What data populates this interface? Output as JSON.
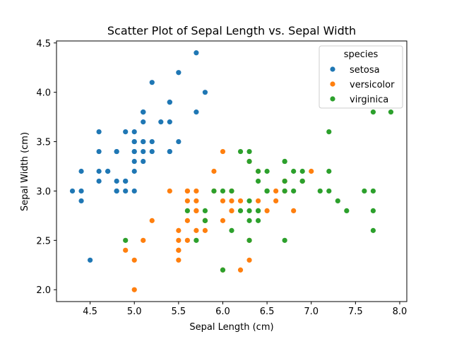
{
  "chart_data": {
    "type": "scatter",
    "title": "Scatter Plot of Sepal Length vs. Sepal Width",
    "xlabel": "Sepal Length (cm)",
    "ylabel": "Sepal Width (cm)",
    "xlim": [
      4.12,
      8.08
    ],
    "ylim": [
      1.88,
      4.52
    ],
    "xticks": [
      "4.5",
      "5.0",
      "5.5",
      "6.0",
      "6.5",
      "7.0",
      "7.5",
      "8.0"
    ],
    "yticks": [
      "2.0",
      "2.5",
      "3.0",
      "3.5",
      "4.0",
      "4.5"
    ],
    "grid": false,
    "legend": {
      "title": "species",
      "position": "top-right"
    },
    "series": [
      {
        "name": "setosa",
        "color": "#1f77b4",
        "points": [
          [
            5.1,
            3.5
          ],
          [
            4.9,
            3.0
          ],
          [
            4.7,
            3.2
          ],
          [
            4.6,
            3.1
          ],
          [
            5.0,
            3.6
          ],
          [
            5.4,
            3.9
          ],
          [
            4.6,
            3.4
          ],
          [
            5.0,
            3.4
          ],
          [
            4.4,
            2.9
          ],
          [
            4.9,
            3.1
          ],
          [
            5.4,
            3.7
          ],
          [
            4.8,
            3.4
          ],
          [
            4.8,
            3.0
          ],
          [
            4.3,
            3.0
          ],
          [
            5.8,
            4.0
          ],
          [
            5.7,
            4.4
          ],
          [
            5.4,
            3.9
          ],
          [
            5.1,
            3.5
          ],
          [
            5.7,
            3.8
          ],
          [
            5.1,
            3.8
          ],
          [
            5.4,
            3.4
          ],
          [
            5.1,
            3.7
          ],
          [
            4.6,
            3.6
          ],
          [
            5.1,
            3.3
          ],
          [
            4.8,
            3.4
          ],
          [
            5.0,
            3.0
          ],
          [
            5.0,
            3.4
          ],
          [
            5.2,
            3.5
          ],
          [
            5.2,
            3.4
          ],
          [
            4.7,
            3.2
          ],
          [
            4.8,
            3.1
          ],
          [
            5.4,
            3.4
          ],
          [
            5.2,
            4.1
          ],
          [
            5.5,
            4.2
          ],
          [
            4.9,
            3.1
          ],
          [
            5.0,
            3.2
          ],
          [
            5.5,
            3.5
          ],
          [
            4.9,
            3.6
          ],
          [
            4.4,
            3.0
          ],
          [
            5.1,
            3.4
          ],
          [
            5.0,
            3.5
          ],
          [
            4.5,
            2.3
          ],
          [
            4.4,
            3.2
          ],
          [
            5.0,
            3.5
          ],
          [
            5.1,
            3.8
          ],
          [
            4.8,
            3.0
          ],
          [
            5.1,
            3.8
          ],
          [
            4.6,
            3.2
          ],
          [
            5.3,
            3.7
          ],
          [
            5.0,
            3.3
          ]
        ]
      },
      {
        "name": "versicolor",
        "color": "#ff7f0e",
        "points": [
          [
            7.0,
            3.2
          ],
          [
            6.4,
            3.2
          ],
          [
            6.9,
            3.1
          ],
          [
            5.5,
            2.3
          ],
          [
            6.5,
            2.8
          ],
          [
            5.7,
            2.8
          ],
          [
            6.3,
            3.3
          ],
          [
            4.9,
            2.4
          ],
          [
            6.6,
            2.9
          ],
          [
            5.2,
            2.7
          ],
          [
            5.0,
            2.0
          ],
          [
            5.9,
            3.0
          ],
          [
            6.0,
            2.2
          ],
          [
            6.1,
            2.9
          ],
          [
            5.6,
            2.9
          ],
          [
            6.7,
            3.1
          ],
          [
            5.6,
            3.0
          ],
          [
            5.8,
            2.7
          ],
          [
            6.2,
            2.2
          ],
          [
            5.6,
            2.5
          ],
          [
            5.9,
            3.2
          ],
          [
            6.1,
            2.8
          ],
          [
            6.3,
            2.5
          ],
          [
            6.1,
            2.8
          ],
          [
            6.4,
            2.9
          ],
          [
            6.6,
            3.0
          ],
          [
            6.8,
            2.8
          ],
          [
            6.7,
            3.0
          ],
          [
            6.0,
            2.9
          ],
          [
            5.7,
            2.6
          ],
          [
            5.5,
            2.4
          ],
          [
            5.5,
            2.4
          ],
          [
            5.8,
            2.7
          ],
          [
            6.0,
            2.7
          ],
          [
            5.4,
            3.0
          ],
          [
            6.0,
            3.4
          ],
          [
            6.7,
            3.1
          ],
          [
            6.3,
            2.3
          ],
          [
            5.6,
            3.0
          ],
          [
            5.5,
            2.5
          ],
          [
            5.5,
            2.6
          ],
          [
            6.1,
            3.0
          ],
          [
            5.8,
            2.6
          ],
          [
            5.0,
            2.3
          ],
          [
            5.6,
            2.7
          ],
          [
            5.7,
            3.0
          ],
          [
            5.7,
            2.9
          ],
          [
            6.2,
            2.9
          ],
          [
            5.1,
            2.5
          ],
          [
            5.7,
            2.8
          ]
        ]
      },
      {
        "name": "virginica",
        "color": "#2ca02c",
        "points": [
          [
            6.3,
            3.3
          ],
          [
            5.8,
            2.7
          ],
          [
            7.1,
            3.0
          ],
          [
            6.3,
            2.9
          ],
          [
            6.5,
            3.0
          ],
          [
            7.6,
            3.0
          ],
          [
            4.9,
            2.5
          ],
          [
            7.3,
            2.9
          ],
          [
            6.7,
            2.5
          ],
          [
            7.2,
            3.6
          ],
          [
            6.5,
            3.2
          ],
          [
            6.4,
            2.7
          ],
          [
            6.8,
            3.0
          ],
          [
            5.7,
            2.5
          ],
          [
            5.8,
            2.8
          ],
          [
            6.4,
            3.2
          ],
          [
            6.5,
            3.0
          ],
          [
            7.7,
            3.8
          ],
          [
            7.7,
            2.6
          ],
          [
            6.0,
            2.2
          ],
          [
            6.9,
            3.2
          ],
          [
            5.6,
            2.8
          ],
          [
            7.7,
            2.8
          ],
          [
            6.3,
            2.7
          ],
          [
            6.7,
            3.3
          ],
          [
            7.2,
            3.2
          ],
          [
            6.2,
            2.8
          ],
          [
            6.1,
            3.0
          ],
          [
            6.4,
            2.8
          ],
          [
            7.2,
            3.0
          ],
          [
            7.4,
            2.8
          ],
          [
            7.9,
            3.8
          ],
          [
            6.4,
            2.8
          ],
          [
            6.3,
            2.8
          ],
          [
            6.1,
            2.6
          ],
          [
            7.7,
            3.0
          ],
          [
            6.3,
            3.4
          ],
          [
            6.4,
            3.1
          ],
          [
            6.0,
            3.0
          ],
          [
            6.9,
            3.1
          ],
          [
            6.7,
            3.1
          ],
          [
            6.9,
            3.1
          ],
          [
            5.8,
            2.7
          ],
          [
            6.8,
            3.2
          ],
          [
            6.7,
            3.3
          ],
          [
            6.7,
            3.0
          ],
          [
            6.3,
            2.5
          ],
          [
            6.5,
            3.0
          ],
          [
            6.2,
            3.4
          ],
          [
            5.9,
            3.0
          ]
        ]
      }
    ]
  }
}
